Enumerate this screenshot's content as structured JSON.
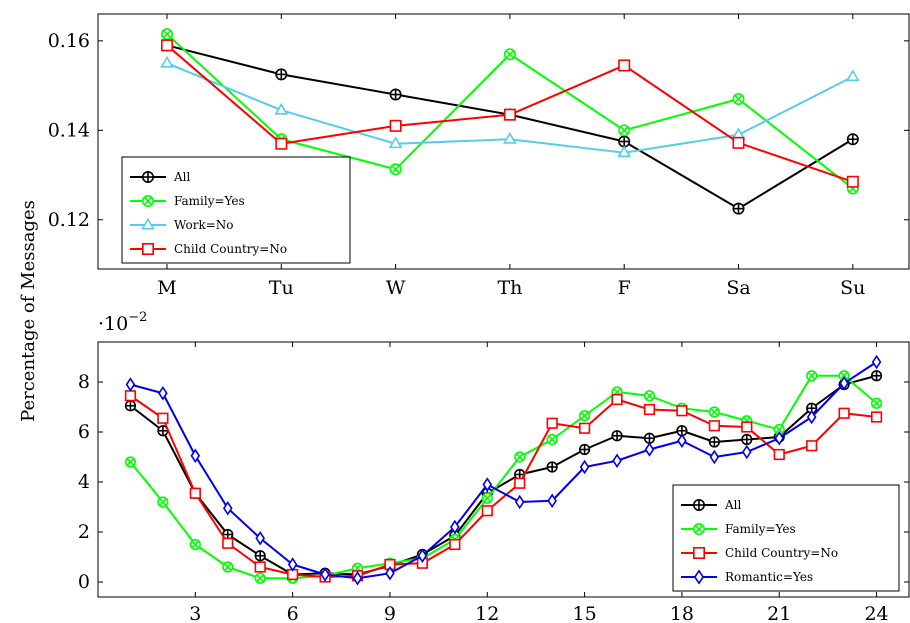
{
  "ylabel": "Percentage of Messages",
  "chart_data": [
    {
      "type": "line",
      "categories": [
        "M",
        "Tu",
        "W",
        "Th",
        "F",
        "Sa",
        "Su"
      ],
      "ylim": [
        0.109,
        0.166
      ],
      "yticks": [
        0.12,
        0.14,
        0.16
      ],
      "ytick_labels": [
        "0.12",
        "0.14",
        "0.16"
      ],
      "legend_position": "bottom-left",
      "series": [
        {
          "name": "All",
          "color": "#000000",
          "marker": "circle-plus",
          "values": [
            0.159,
            0.1525,
            0.148,
            0.1435,
            0.1375,
            0.1225,
            0.138
          ]
        },
        {
          "name": "Family=Yes",
          "color": "#00ff00",
          "marker": "circle-x",
          "values": [
            0.1615,
            0.138,
            0.1313,
            0.157,
            0.14,
            0.147,
            0.127
          ]
        },
        {
          "name": "Work=No",
          "color": "#55ccee",
          "marker": "triangle",
          "values": [
            0.155,
            0.1445,
            0.137,
            0.138,
            0.135,
            0.139,
            0.152
          ]
        },
        {
          "name": "Child Country=No",
          "color": "#ff0000",
          "marker": "square",
          "values": [
            0.159,
            0.137,
            0.141,
            0.1435,
            0.1545,
            0.1372,
            0.1285
          ]
        }
      ]
    },
    {
      "type": "line",
      "x": [
        1,
        2,
        3,
        4,
        5,
        6,
        7,
        8,
        9,
        10,
        11,
        12,
        13,
        14,
        15,
        16,
        17,
        18,
        19,
        20,
        21,
        22,
        23,
        24
      ],
      "xlim": [
        0,
        25
      ],
      "xticks": [
        3,
        6,
        9,
        12,
        15,
        18,
        21,
        24
      ],
      "ylim": [
        -0.6,
        9.6
      ],
      "yticks": [
        0,
        2,
        4,
        6,
        8
      ],
      "ytick_labels": [
        "0",
        "2",
        "4",
        "6",
        "8"
      ],
      "y_multiplier": "·10",
      "y_multiplier_exp": "−2",
      "legend_position": "bottom-right",
      "series": [
        {
          "name": "All",
          "color": "#000000",
          "marker": "circle-plus",
          "values": [
            7.05,
            6.05,
            3.55,
            1.9,
            1.05,
            0.3,
            0.35,
            0.3,
            0.65,
            1.1,
            1.85,
            3.55,
            4.3,
            4.6,
            5.3,
            5.85,
            5.75,
            6.05,
            5.6,
            5.7,
            5.8,
            6.95,
            7.9,
            8.25
          ]
        },
        {
          "name": "Family=Yes",
          "color": "#00ff00",
          "marker": "circle-x",
          "values": [
            4.8,
            3.2,
            1.5,
            0.6,
            0.15,
            0.15,
            0.25,
            0.55,
            0.75,
            0.95,
            1.7,
            3.35,
            5.0,
            5.7,
            6.65,
            7.6,
            7.45,
            6.95,
            6.8,
            6.45,
            6.1,
            8.25,
            8.25,
            7.15
          ]
        },
        {
          "name": "Child Country=No",
          "color": "#ff0000",
          "marker": "square",
          "values": [
            7.45,
            6.55,
            3.55,
            1.55,
            0.6,
            0.3,
            0.2,
            0.25,
            0.7,
            0.75,
            1.5,
            2.85,
            3.95,
            6.35,
            6.15,
            7.3,
            6.9,
            6.85,
            6.25,
            6.2,
            5.1,
            5.45,
            6.75,
            6.6
          ]
        },
        {
          "name": "Romantic=Yes",
          "color": "#0000ee",
          "marker": "diamond",
          "values": [
            7.9,
            7.55,
            5.05,
            2.95,
            1.75,
            0.7,
            0.3,
            0.15,
            0.35,
            1.05,
            2.2,
            3.9,
            3.2,
            3.25,
            4.6,
            4.85,
            5.3,
            5.65,
            5.0,
            5.2,
            5.75,
            6.6,
            7.95,
            8.8
          ]
        }
      ]
    }
  ]
}
